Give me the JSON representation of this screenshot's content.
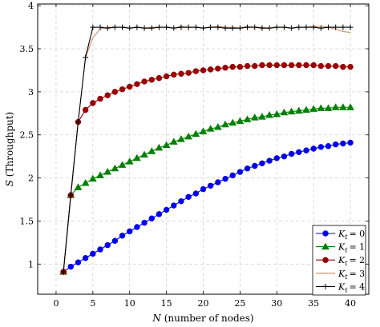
{
  "chart_data": {
    "type": "line",
    "xlabel_var": "N",
    "xlabel_text": "(number of nodes)",
    "ylabel_var": "S",
    "ylabel_text": "(Throughput)",
    "xlim": [
      -2.5,
      42.5
    ],
    "ylim": [
      0.65,
      4.02
    ],
    "x_ticks": [
      0,
      5,
      10,
      15,
      20,
      25,
      30,
      35,
      40
    ],
    "y_ticks": [
      1,
      1.5,
      2,
      2.5,
      3,
      3.5,
      4
    ],
    "grid": true,
    "legend_position": "bottom-right",
    "x": [
      1,
      2,
      3,
      4,
      5,
      6,
      7,
      8,
      9,
      10,
      11,
      12,
      13,
      14,
      15,
      16,
      17,
      18,
      19,
      20,
      21,
      22,
      23,
      24,
      25,
      26,
      27,
      28,
      29,
      30,
      31,
      32,
      33,
      34,
      35,
      36,
      37,
      38,
      39,
      40
    ],
    "series": [
      {
        "name": "K_t = 0",
        "legend_var": "K",
        "legend_sub": "t",
        "legend_val": "= 0",
        "color": "#0000ee",
        "marker": "circle",
        "values": [
          0.91,
          0.97,
          1.02,
          1.07,
          1.12,
          1.17,
          1.22,
          1.27,
          1.33,
          1.38,
          1.43,
          1.48,
          1.53,
          1.58,
          1.63,
          1.68,
          1.73,
          1.78,
          1.82,
          1.87,
          1.91,
          1.95,
          1.99,
          2.03,
          2.07,
          2.11,
          2.14,
          2.17,
          2.2,
          2.23,
          2.25,
          2.28,
          2.3,
          2.32,
          2.34,
          2.36,
          2.37,
          2.39,
          2.4,
          2.41
        ]
      },
      {
        "name": "K_t = 1",
        "legend_var": "K",
        "legend_sub": "t",
        "legend_val": "= 1",
        "color": "#008000",
        "marker": "triangle",
        "values": [
          0.91,
          1.8,
          1.89,
          1.94,
          1.99,
          2.03,
          2.07,
          2.11,
          2.15,
          2.19,
          2.23,
          2.27,
          2.31,
          2.35,
          2.38,
          2.42,
          2.45,
          2.48,
          2.51,
          2.54,
          2.57,
          2.59,
          2.62,
          2.64,
          2.66,
          2.68,
          2.7,
          2.71,
          2.73,
          2.74,
          2.76,
          2.77,
          2.78,
          2.79,
          2.8,
          2.81,
          2.81,
          2.82,
          2.82,
          2.82
        ]
      },
      {
        "name": "K_t = 2",
        "legend_var": "K",
        "legend_sub": "t",
        "legend_val": "= 2",
        "color": "#990000",
        "marker": "circle",
        "values": [
          0.91,
          1.8,
          2.65,
          2.79,
          2.87,
          2.92,
          2.96,
          3.0,
          3.03,
          3.06,
          3.09,
          3.12,
          3.14,
          3.16,
          3.18,
          3.2,
          3.21,
          3.22,
          3.24,
          3.25,
          3.26,
          3.27,
          3.28,
          3.29,
          3.29,
          3.3,
          3.3,
          3.31,
          3.31,
          3.31,
          3.31,
          3.31,
          3.31,
          3.31,
          3.31,
          3.3,
          3.3,
          3.3,
          3.29,
          3.29
        ]
      },
      {
        "name": "K_t = 3",
        "legend_var": "K",
        "legend_sub": "t",
        "legend_val": "= 3",
        "color": "#c8875a",
        "marker": "none",
        "values": [
          0.91,
          1.8,
          2.65,
          3.4,
          3.63,
          3.73,
          3.75,
          3.75,
          3.75,
          3.74,
          3.75,
          3.74,
          3.75,
          3.75,
          3.75,
          3.74,
          3.76,
          3.75,
          3.75,
          3.74,
          3.75,
          3.76,
          3.75,
          3.75,
          3.74,
          3.76,
          3.75,
          3.75,
          3.74,
          3.75,
          3.75,
          3.74,
          3.75,
          3.75,
          3.76,
          3.76,
          3.75,
          3.73,
          3.7,
          3.69
        ]
      },
      {
        "name": "K_t = 4",
        "legend_var": "K",
        "legend_sub": "t",
        "legend_val": "= 4",
        "color": "#000000",
        "marker": "plus",
        "values": [
          0.91,
          1.8,
          2.65,
          3.4,
          3.75,
          3.75,
          3.74,
          3.75,
          3.75,
          3.74,
          3.75,
          3.74,
          3.74,
          3.75,
          3.75,
          3.74,
          3.75,
          3.75,
          3.75,
          3.74,
          3.75,
          3.75,
          3.74,
          3.74,
          3.74,
          3.75,
          3.75,
          3.74,
          3.74,
          3.75,
          3.75,
          3.74,
          3.75,
          3.75,
          3.75,
          3.74,
          3.75,
          3.75,
          3.75,
          3.75
        ]
      }
    ]
  }
}
